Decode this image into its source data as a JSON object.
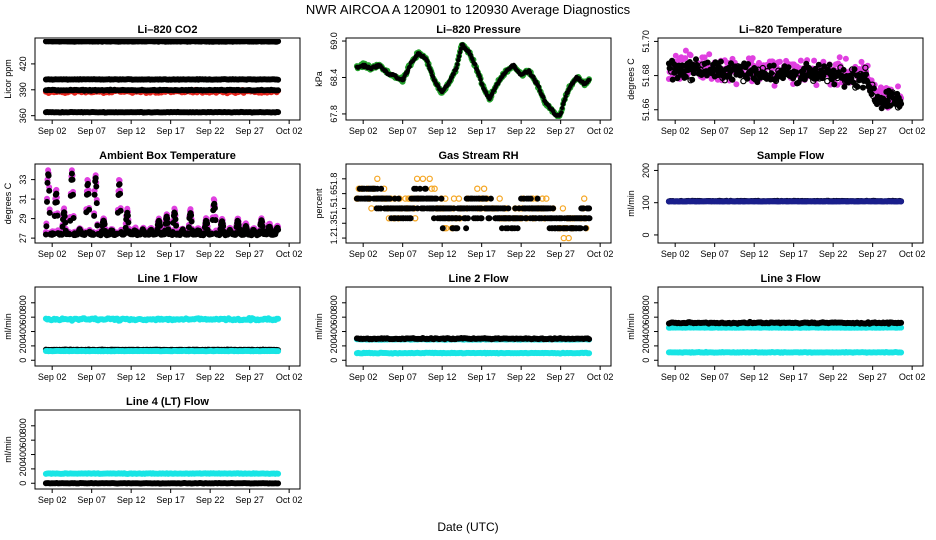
{
  "figure": {
    "title": "NWR   AIRCOA A   120901 to 120930   Average Diagnostics",
    "xlabel": "Date (UTC)"
  },
  "colors": {
    "black": "#000000",
    "red": "#e8251c",
    "green": "#22a02a",
    "magenta": "#e040e0",
    "orange": "#f5a623",
    "cyan": "#19e5e5",
    "navy": "#1a1f8c"
  },
  "x_axis": {
    "range": [
      0,
      30
    ],
    "tick_values": [
      1,
      6,
      11,
      16,
      21,
      26,
      31
    ],
    "tick_labels": [
      "Sep 02",
      "Sep 07",
      "Sep 12",
      "Sep 17",
      "Sep 22",
      "Sep 27",
      "Oct 02"
    ]
  },
  "chart_data": [
    {
      "type": "scatter",
      "title": "Li–820 CO2",
      "ylabel": "Licor ppm",
      "ylim": [
        355,
        450
      ],
      "yticks": [
        360,
        390,
        420
      ],
      "ytick_labels": [
        "360",
        "390",
        "420"
      ],
      "series": [
        {
          "name": "upper reference",
          "color": "black",
          "kind": "band",
          "level": 446,
          "spread": 0.5
        },
        {
          "name": "mid reference",
          "color": "black",
          "kind": "band",
          "level": 402,
          "spread": 0.5
        },
        {
          "name": "lower reference",
          "color": "black",
          "kind": "band",
          "level": 364,
          "spread": 0.5
        },
        {
          "name": "sample",
          "color": "red",
          "kind": "band",
          "level": 388,
          "spread": 2.5
        },
        {
          "name": "sample (black)",
          "color": "black",
          "kind": "band",
          "level": 389.5,
          "spread": 0.8
        }
      ]
    },
    {
      "type": "scatter",
      "title": "Li–820 Pressure",
      "ylabel": "kPa",
      "ylim": [
        67.7,
        69.05
      ],
      "yticks": [
        67.8,
        68.4,
        69.0
      ],
      "ytick_labels": [
        "67.8",
        "68.4",
        "69.0"
      ],
      "series": [
        {
          "name": "pressure",
          "color": "green",
          "kind": "line",
          "x": [
            0.0,
            1.0,
            2.0,
            3.0,
            4.0,
            5.0,
            6.0,
            7.0,
            8.0,
            9.0,
            10.0,
            11.0,
            12.0,
            12.8,
            13.5,
            14.5,
            15.5,
            16.3,
            17.0,
            18.0,
            19.0,
            20.0,
            21.0,
            22.0,
            23.0,
            24.0,
            25.0,
            25.5,
            26.0,
            26.5,
            27.0,
            28.0,
            29.0,
            30.0
          ],
          "y": [
            68.55,
            68.6,
            68.55,
            68.6,
            68.48,
            68.42,
            68.35,
            68.62,
            68.8,
            68.7,
            68.35,
            68.15,
            68.35,
            68.55,
            68.95,
            68.8,
            68.5,
            68.2,
            68.05,
            68.3,
            68.5,
            68.6,
            68.45,
            68.5,
            68.3,
            68.0,
            67.85,
            67.75,
            67.8,
            68.05,
            68.2,
            68.4,
            68.3,
            68.38
          ]
        }
      ]
    },
    {
      "type": "scatter",
      "title": "Li–820 Temperature",
      "ylabel": "degrees C",
      "ylim": [
        51.654,
        51.702
      ],
      "yticks": [
        51.66,
        51.68,
        51.7
      ],
      "ytick_labels": [
        "51.66",
        "51.68",
        "51.70"
      ],
      "series": [
        {
          "name": "high",
          "color": "magenta",
          "kind": "band_line",
          "x": [
            0,
            5,
            10,
            15,
            20,
            25,
            26.5,
            27.5,
            30
          ],
          "y": [
            51.686,
            51.685,
            51.684,
            51.683,
            51.682,
            51.681,
            51.669,
            51.668,
            51.667
          ],
          "spread": 0.011
        },
        {
          "name": "low",
          "color": "black",
          "kind": "band_line",
          "x": [
            0,
            5,
            10,
            15,
            20,
            25,
            26.5,
            27.5,
            30
          ],
          "y": [
            51.684,
            51.683,
            51.682,
            51.681,
            51.68,
            51.679,
            51.667,
            51.666,
            51.665
          ],
          "spread": 0.008
        }
      ]
    },
    {
      "type": "scatter",
      "title": "Ambient Box Temperature",
      "ylabel": "degrees C",
      "ylim": [
        26.5,
        34.6
      ],
      "yticks": [
        27,
        29,
        31,
        33
      ],
      "ytick_labels": [
        "27",
        "29",
        "31",
        "33"
      ],
      "series": [
        {
          "name": "temp high",
          "color": "magenta",
          "kind": "daily_peaks",
          "baseline": 27.6,
          "peaks": [
            34.0,
            32.0,
            30.0,
            34.0,
            28.0,
            33.0,
            33.5,
            29.0,
            28.0,
            33.0,
            30.0,
            28.0,
            28.0,
            28.0,
            29.0,
            29.5,
            30.0,
            28.0,
            30.0,
            28.0,
            29.0,
            31.0,
            29.0,
            28.0,
            29.0,
            28.5,
            28.0,
            29.0,
            28.5,
            28.2
          ]
        },
        {
          "name": "temp low",
          "color": "black",
          "kind": "daily_peaks",
          "baseline": 27.4,
          "peaks": [
            33.6,
            31.6,
            29.6,
            33.6,
            27.8,
            32.6,
            33.1,
            28.8,
            27.8,
            32.6,
            29.6,
            27.8,
            27.8,
            27.8,
            28.8,
            29.2,
            29.6,
            27.8,
            29.6,
            27.8,
            28.8,
            30.6,
            28.8,
            27.8,
            28.8,
            28.2,
            27.8,
            28.8,
            28.2,
            28.0
          ]
        }
      ]
    },
    {
      "type": "scatter",
      "title": "Gas Stream RH",
      "ylabel": "percent",
      "ylim": [
        1.15,
        1.95
      ],
      "yticks": [
        1.2,
        1.35,
        1.5,
        1.65,
        1.8
      ],
      "ytick_labels": [
        "1.2",
        "1.35",
        "1.5",
        "1.65",
        "1.8"
      ],
      "series": [
        {
          "name": "rh outliers",
          "color": "orange",
          "kind": "quantized",
          "levels": [
            1.9,
            1.8,
            1.7,
            1.6,
            1.5,
            1.4,
            1.3,
            1.2
          ]
        },
        {
          "name": "rh",
          "color": "black",
          "kind": "quantized",
          "levels": [
            1.8,
            1.7,
            1.6,
            1.5,
            1.4,
            1.3
          ]
        }
      ]
    },
    {
      "type": "scatter",
      "title": "Sample Flow",
      "ylabel": "ml/min",
      "ylim": [
        -25,
        220
      ],
      "yticks": [
        0,
        100,
        200
      ],
      "ytick_labels": [
        "0",
        "100",
        "200"
      ],
      "series": [
        {
          "name": "sample flow",
          "color": "black",
          "kind": "band",
          "level": 105,
          "spread": 1.5
        },
        {
          "name": "sample flow (blue)",
          "color": "navy",
          "kind": "band",
          "level": 104,
          "spread": 0.6
        }
      ]
    },
    {
      "type": "scatter",
      "title": "Line 1 Flow",
      "ylabel": "ml/min",
      "ylim": [
        -80,
        1020
      ],
      "yticks": [
        0,
        200,
        400,
        600,
        800
      ],
      "ytick_labels": [
        "0",
        "200",
        "400",
        "600",
        "800"
      ],
      "series": [
        {
          "name": "line 1 high",
          "color": "cyan",
          "kind": "band",
          "level": 570,
          "spread": 25
        },
        {
          "name": "line 1 low",
          "color": "black",
          "kind": "band",
          "level": 145,
          "spread": 6
        },
        {
          "name": "line 1 low (cyan)",
          "color": "cyan",
          "kind": "band",
          "level": 128,
          "spread": 4
        }
      ]
    },
    {
      "type": "scatter",
      "title": "Line 2 Flow",
      "ylabel": "ml/min",
      "ylim": [
        -80,
        1020
      ],
      "yticks": [
        0,
        200,
        400,
        600,
        800
      ],
      "ytick_labels": [
        "0",
        "200",
        "400",
        "600",
        "800"
      ],
      "series": [
        {
          "name": "line 2 high (cyan)",
          "color": "cyan",
          "kind": "band",
          "level": 290,
          "spread": 6
        },
        {
          "name": "line 2 high",
          "color": "black",
          "kind": "band",
          "level": 300,
          "spread": 12
        },
        {
          "name": "line 2 low",
          "color": "cyan",
          "kind": "band",
          "level": 100,
          "spread": 8
        }
      ]
    },
    {
      "type": "scatter",
      "title": "Line 3 Flow",
      "ylabel": "ml/min",
      "ylim": [
        -80,
        1020
      ],
      "yticks": [
        0,
        200,
        400,
        600,
        800
      ],
      "ytick_labels": [
        "0",
        "200",
        "400",
        "600",
        "800"
      ],
      "series": [
        {
          "name": "line 3 high (cyan)",
          "color": "cyan",
          "kind": "band",
          "level": 455,
          "spread": 6
        },
        {
          "name": "line 3 high",
          "color": "black",
          "kind": "band",
          "level": 520,
          "spread": 14
        },
        {
          "name": "line 3 low",
          "color": "cyan",
          "kind": "band",
          "level": 110,
          "spread": 8
        }
      ]
    },
    {
      "type": "scatter",
      "title": "Line 4 (LT) Flow",
      "ylabel": "ml/min",
      "ylim": [
        -80,
        1020
      ],
      "yticks": [
        0,
        200,
        400,
        600,
        800
      ],
      "ytick_labels": [
        "0",
        "200",
        "400",
        "600",
        "800"
      ],
      "series": [
        {
          "name": "line 4 high",
          "color": "cyan",
          "kind": "band",
          "level": 135,
          "spread": 7
        },
        {
          "name": "line 4 low",
          "color": "black",
          "kind": "band",
          "level": 0,
          "spread": 5
        }
      ]
    }
  ]
}
